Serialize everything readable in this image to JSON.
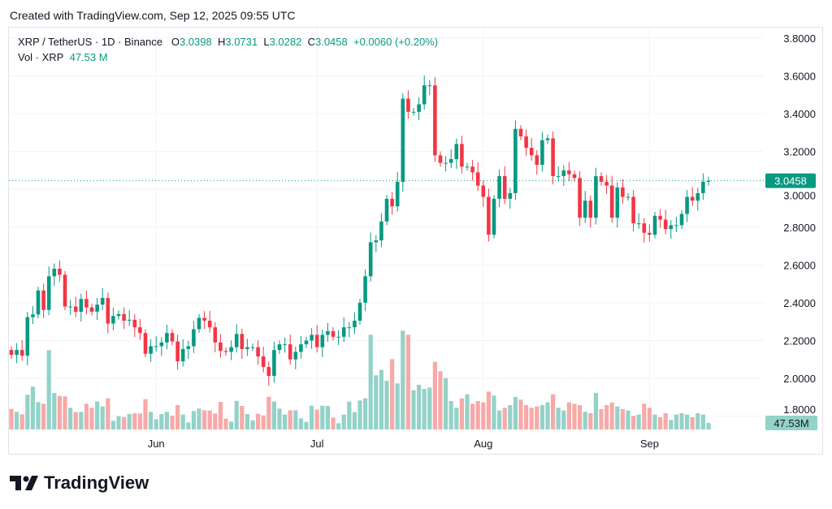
{
  "header": {
    "created": "Created with TradingView.com, Sep 12, 2025 09:55 UTC"
  },
  "legend": {
    "symbol": "XRP / TetherUS · 1D · Binance",
    "o_label": "O",
    "o": "3.0398",
    "h_label": "H",
    "h": "3.0731",
    "l_label": "L",
    "l": "3.0282",
    "c_label": "C",
    "c": "3.0458",
    "change": "+0.0060 (+0.20%)",
    "vol_label": "Vol · XRP",
    "vol": "47.53 M"
  },
  "logo": {
    "text": "TradingView",
    "icon": "tradingview-logo-icon"
  },
  "colors": {
    "up": "#089981",
    "down": "#F23645",
    "vol_up": "#93d2c8",
    "vol_down": "#f7a9a8",
    "grid": "#f0f3fa"
  },
  "chart_data": {
    "type": "candlestick",
    "interval": "1D",
    "x_ticks": [
      "Jun",
      "Jul",
      "Aug",
      "Sep"
    ],
    "y_ticks": [
      "3.8000",
      "3.6000",
      "3.4000",
      "3.2000",
      "3.0000",
      "2.8000",
      "2.6000",
      "2.4000",
      "2.2000",
      "2.0000",
      "1.8000"
    ],
    "ylim": [
      1.8,
      3.8
    ],
    "first_date": "2025-05-05",
    "last_date": "2025-09-12",
    "first_open": 2.15,
    "close": [
      2.124,
      2.15,
      2.12,
      2.324,
      2.338,
      2.465,
      2.362,
      2.54,
      2.58,
      2.548,
      2.38,
      2.38,
      2.352,
      2.42,
      2.375,
      2.353,
      2.39,
      2.425,
      2.29,
      2.33,
      2.34,
      2.305,
      2.31,
      2.27,
      2.24,
      2.13,
      2.17,
      2.17,
      2.19,
      2.24,
      2.195,
      2.09,
      2.155,
      2.17,
      2.26,
      2.32,
      2.305,
      2.27,
      2.19,
      2.145,
      2.14,
      2.165,
      2.235,
      2.155,
      2.165,
      2.165,
      2.116,
      2.06,
      2.013,
      2.15,
      2.18,
      2.18,
      2.1,
      2.14,
      2.18,
      2.2,
      2.23,
      2.165,
      2.23,
      2.25,
      2.22,
      2.22,
      2.27,
      2.27,
      2.305,
      2.4,
      2.54,
      2.72,
      2.73,
      2.83,
      2.95,
      2.91,
      3.04,
      3.48,
      3.41,
      3.41,
      3.45,
      3.55,
      3.55,
      3.18,
      3.14,
      3.14,
      3.16,
      3.24,
      3.12,
      3.12,
      3.09,
      3.02,
      2.96,
      2.76,
      2.95,
      3.07,
      2.95,
      2.98,
      3.32,
      3.28,
      3.22,
      3.18,
      3.13,
      3.26,
      3.27,
      3.07,
      3.07,
      3.1,
      3.08,
      3.06,
      2.85,
      2.94,
      2.85,
      3.07,
      3.04,
      3.02,
      2.85,
      3.01,
      2.96,
      2.96,
      2.82,
      2.82,
      2.77,
      2.76,
      2.86,
      2.84,
      2.79,
      2.81,
      2.81,
      2.87,
      2.96,
      2.94,
      2.98,
      3.04,
      3.0458
    ],
    "volume_m": [
      152,
      130,
      112,
      256,
      316,
      202,
      190,
      586,
      270,
      248,
      244,
      160,
      128,
      130,
      190,
      160,
      206,
      170,
      230,
      64,
      98,
      92,
      114,
      120,
      118,
      224,
      130,
      76,
      114,
      130,
      102,
      180,
      110,
      52,
      136,
      154,
      142,
      140,
      118,
      204,
      80,
      58,
      212,
      174,
      114,
      68,
      116,
      104,
      242,
      206,
      154,
      110,
      142,
      142,
      82,
      56,
      176,
      146,
      176,
      174,
      88,
      46,
      110,
      206,
      128,
      214,
      230,
      700,
      400,
      440,
      360,
      520,
      340,
      730,
      700,
      290,
      330,
      300,
      310,
      500,
      430,
      380,
      210,
      160,
      230,
      260,
      190,
      210,
      200,
      280,
      250,
      140,
      160,
      180,
      240,
      220,
      180,
      160,
      170,
      180,
      200,
      260,
      160,
      140,
      200,
      190,
      180,
      130,
      120,
      270,
      150,
      180,
      200,
      170,
      150,
      140,
      100,
      110,
      190,
      160,
      110,
      90,
      120,
      70,
      110,
      120,
      110,
      90,
      120,
      110,
      47.53
    ],
    "last_price_label": "3.0458",
    "last_volume_label": "47.53M"
  }
}
